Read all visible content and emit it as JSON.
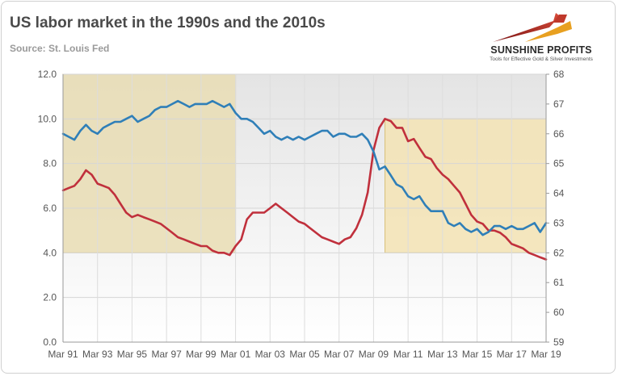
{
  "header": {
    "title": "US labor market in the 1990s and the 2010s",
    "subtitle": "Source: St. Louis Fed"
  },
  "logo": {
    "name": "SUNSHINE PROFITS",
    "tagline": "Tools for Effective Gold & Silver Investments",
    "colors": [
      "#8b1a1a",
      "#c0392b",
      "#e8a020"
    ]
  },
  "chart_data": {
    "type": "line",
    "title": "US labor market in the 1990s and the 2010s",
    "subtitle": "Source: St. Louis Fed",
    "x_ticks": [
      "Mar 91",
      "Mar 93",
      "Mar 95",
      "Mar 97",
      "Mar 99",
      "Mar 01",
      "Mar 03",
      "Mar 05",
      "Mar 07",
      "Mar 09",
      "Mar 11",
      "Mar 13",
      "Mar 15",
      "Mar 17",
      "Mar 19"
    ],
    "x_range": [
      1991.17,
      2019.17
    ],
    "y_left": {
      "ylim": [
        0,
        12
      ],
      "ticks": [
        "0.0",
        "2.0",
        "4.0",
        "6.0",
        "8.0",
        "10.0",
        "12.0"
      ]
    },
    "y_right": {
      "ylim": [
        59,
        68
      ],
      "ticks": [
        "59",
        "60",
        "61",
        "62",
        "63",
        "64",
        "65",
        "66",
        "67",
        "68"
      ]
    },
    "grid": true,
    "legend": "none",
    "shaded_regions": [
      {
        "x0": 1991.17,
        "x1": 2001.17,
        "y0_left": 4.0,
        "y1_left": 12.0,
        "color": "#e9ddb4"
      },
      {
        "x0": 2009.83,
        "x1": 2019.17,
        "y0_left": 4.0,
        "y1_left": 10.0,
        "color": "#f3e3b4"
      }
    ],
    "series": [
      {
        "axis": "left",
        "color": "#c0303c",
        "x": [
          1991.17,
          1991.5,
          1991.83,
          1992.17,
          1992.5,
          1992.83,
          1993.17,
          1993.5,
          1993.83,
          1994.17,
          1994.5,
          1994.83,
          1995.17,
          1995.5,
          1995.83,
          1996.17,
          1996.5,
          1996.83,
          1997.17,
          1997.5,
          1997.83,
          1998.17,
          1998.5,
          1998.83,
          1999.17,
          1999.5,
          1999.83,
          2000.17,
          2000.5,
          2000.83,
          2001.17,
          2001.5,
          2001.83,
          2002.17,
          2002.5,
          2002.83,
          2003.17,
          2003.5,
          2003.83,
          2004.17,
          2004.5,
          2004.83,
          2005.17,
          2005.5,
          2005.83,
          2006.17,
          2006.5,
          2006.83,
          2007.17,
          2007.5,
          2007.83,
          2008.17,
          2008.5,
          2008.83,
          2009.17,
          2009.5,
          2009.83,
          2010.17,
          2010.5,
          2010.83,
          2011.17,
          2011.5,
          2011.83,
          2012.17,
          2012.5,
          2012.83,
          2013.17,
          2013.5,
          2013.83,
          2014.17,
          2014.5,
          2014.83,
          2015.17,
          2015.5,
          2015.83,
          2016.17,
          2016.5,
          2016.83,
          2017.17,
          2017.5,
          2017.83,
          2018.17,
          2018.5,
          2018.83,
          2019.17
        ],
        "y": [
          6.8,
          6.9,
          7.0,
          7.3,
          7.7,
          7.5,
          7.1,
          7.0,
          6.9,
          6.6,
          6.2,
          5.8,
          5.6,
          5.7,
          5.6,
          5.5,
          5.4,
          5.3,
          5.1,
          4.9,
          4.7,
          4.6,
          4.5,
          4.4,
          4.3,
          4.3,
          4.1,
          4.0,
          4.0,
          3.9,
          4.3,
          4.6,
          5.5,
          5.8,
          5.8,
          5.8,
          6.0,
          6.2,
          6.0,
          5.8,
          5.6,
          5.4,
          5.3,
          5.1,
          4.9,
          4.7,
          4.6,
          4.5,
          4.4,
          4.6,
          4.7,
          5.1,
          5.7,
          6.7,
          8.6,
          9.6,
          10.0,
          9.9,
          9.6,
          9.6,
          9.0,
          9.1,
          8.7,
          8.3,
          8.2,
          7.8,
          7.5,
          7.3,
          7.0,
          6.7,
          6.2,
          5.7,
          5.4,
          5.3,
          5.0,
          5.0,
          4.9,
          4.7,
          4.4,
          4.3,
          4.2,
          4.0,
          3.9,
          3.8,
          3.7
        ]
      },
      {
        "axis": "right",
        "color": "#2f7fb8",
        "x": [
          1991.17,
          1991.5,
          1991.83,
          1992.17,
          1992.5,
          1992.83,
          1993.17,
          1993.5,
          1993.83,
          1994.17,
          1994.5,
          1994.83,
          1995.17,
          1995.5,
          1995.83,
          1996.17,
          1996.5,
          1996.83,
          1997.17,
          1997.5,
          1997.83,
          1998.17,
          1998.5,
          1998.83,
          1999.17,
          1999.5,
          1999.83,
          2000.17,
          2000.5,
          2000.83,
          2001.17,
          2001.5,
          2001.83,
          2002.17,
          2002.5,
          2002.83,
          2003.17,
          2003.5,
          2003.83,
          2004.17,
          2004.5,
          2004.83,
          2005.17,
          2005.5,
          2005.83,
          2006.17,
          2006.5,
          2006.83,
          2007.17,
          2007.5,
          2007.83,
          2008.17,
          2008.5,
          2008.83,
          2009.17,
          2009.5,
          2009.83,
          2010.17,
          2010.5,
          2010.83,
          2011.17,
          2011.5,
          2011.83,
          2012.17,
          2012.5,
          2012.83,
          2013.17,
          2013.5,
          2013.83,
          2014.17,
          2014.5,
          2014.83,
          2015.17,
          2015.5,
          2015.83,
          2016.17,
          2016.5,
          2016.83,
          2017.17,
          2017.5,
          2017.83,
          2018.17,
          2018.5,
          2018.83,
          2019.17
        ],
        "y": [
          66.0,
          65.9,
          65.8,
          66.1,
          66.3,
          66.1,
          66.0,
          66.2,
          66.3,
          66.4,
          66.4,
          66.5,
          66.6,
          66.4,
          66.5,
          66.6,
          66.8,
          66.9,
          66.9,
          67.0,
          67.1,
          67.0,
          66.9,
          67.0,
          67.0,
          67.0,
          67.1,
          67.0,
          66.9,
          67.0,
          66.7,
          66.5,
          66.5,
          66.4,
          66.2,
          66.0,
          66.1,
          65.9,
          65.8,
          65.9,
          65.8,
          65.9,
          65.8,
          65.9,
          66.0,
          66.1,
          66.1,
          65.9,
          66.0,
          66.0,
          65.9,
          65.9,
          66.0,
          65.8,
          65.4,
          64.8,
          64.9,
          64.6,
          64.3,
          64.2,
          63.9,
          63.8,
          63.9,
          63.6,
          63.4,
          63.4,
          63.4,
          63.0,
          62.9,
          63.0,
          62.8,
          62.7,
          62.8,
          62.6,
          62.7,
          62.9,
          62.9,
          62.8,
          62.9,
          62.8,
          62.8,
          62.9,
          63.0,
          62.7,
          63.0
        ]
      }
    ]
  }
}
